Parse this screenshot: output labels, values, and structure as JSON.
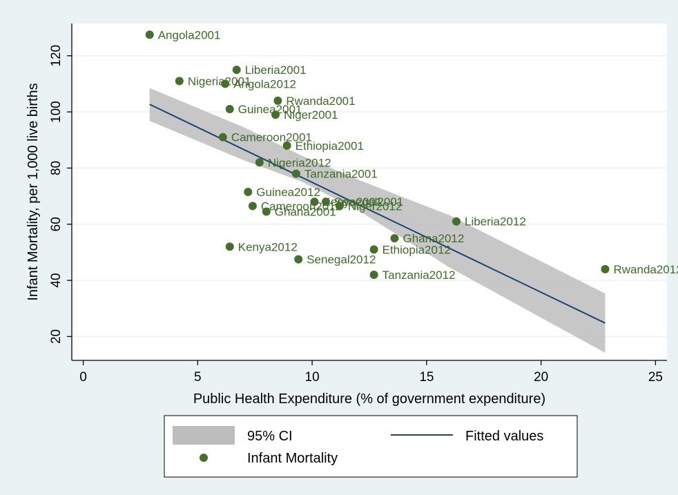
{
  "chart_data": {
    "type": "scatter",
    "xlabel": "Public Health Expenditure (% of government expenditure)",
    "ylabel": "Infant Mortality, per 1,000 live births",
    "xlim": [
      -0.5,
      25.5
    ],
    "ylim": [
      11.5,
      131.5
    ],
    "xticks": [
      0,
      5,
      10,
      15,
      20,
      25
    ],
    "yticks": [
      20,
      40,
      60,
      80,
      100,
      120
    ],
    "grid": "horizontal",
    "colors": {
      "point": "#466f2a",
      "label": "#3e6b26",
      "line": "#1a4470",
      "band": "#bdbdbd",
      "plot_bg": "#ffffff",
      "page_bg": "#eaf2f3"
    },
    "series": [
      {
        "name": "Infant Mortality",
        "points": [
          {
            "label": "Angola2001",
            "x": 2.9,
            "y": 127.5
          },
          {
            "label": "Liberia2001",
            "x": 6.7,
            "y": 115
          },
          {
            "label": "Nigeria2001",
            "x": 4.2,
            "y": 111
          },
          {
            "label": "Angola2012",
            "x": 6.2,
            "y": 110
          },
          {
            "label": "Rwanda2001",
            "x": 8.5,
            "y": 104
          },
          {
            "label": "Guinea2001",
            "x": 6.4,
            "y": 101
          },
          {
            "label": "Niger2001",
            "x": 8.4,
            "y": 99
          },
          {
            "label": "Cameroon2001",
            "x": 6.1,
            "y": 91
          },
          {
            "label": "Ethiopia2001",
            "x": 8.9,
            "y": 88
          },
          {
            "label": "Nigeria2012",
            "x": 7.7,
            "y": 82
          },
          {
            "label": "Tanzania2001",
            "x": 9.3,
            "y": 78
          },
          {
            "label": "Guinea2012",
            "x": 7.2,
            "y": 71.5
          },
          {
            "label": "Kenya2001",
            "x": 10.1,
            "y": 68
          },
          {
            "label": "Senegal2001",
            "x": 10.6,
            "y": 68
          },
          {
            "label": "Cameroon2012",
            "x": 7.4,
            "y": 66.5
          },
          {
            "label": "Niger2012",
            "x": 11.2,
            "y": 66.5
          },
          {
            "label": "Ghana2001",
            "x": 8.0,
            "y": 64.5
          },
          {
            "label": "Liberia2012",
            "x": 16.3,
            "y": 61
          },
          {
            "label": "Ghana2012",
            "x": 13.6,
            "y": 55
          },
          {
            "label": "Kenya2012",
            "x": 6.4,
            "y": 52
          },
          {
            "label": "Ethiopia2012",
            "x": 12.7,
            "y": 51
          },
          {
            "label": "Senegal2012",
            "x": 9.4,
            "y": 47.5
          },
          {
            "label": "Rwanda2012",
            "x": 22.8,
            "y": 44
          },
          {
            "label": "Tanzania2012",
            "x": 12.7,
            "y": 42
          }
        ]
      },
      {
        "name": "Fitted values",
        "type": "line",
        "x": [
          2.9,
          22.8
        ],
        "y": [
          102.7,
          24.8
        ]
      },
      {
        "name": "95% CI",
        "type": "area",
        "x": [
          2.9,
          7.0,
          9.5,
          12.0,
          16.0,
          22.8
        ],
        "lower": [
          96.8,
          82.8,
          75.3,
          65.0,
          44.6,
          14.2
        ],
        "upper": [
          108.5,
          94.6,
          84.6,
          75.9,
          63.2,
          35.3
        ]
      }
    ],
    "legend": {
      "position": "bottom",
      "entries": [
        "95% CI",
        "Fitted values",
        "Infant Mortality"
      ]
    }
  }
}
